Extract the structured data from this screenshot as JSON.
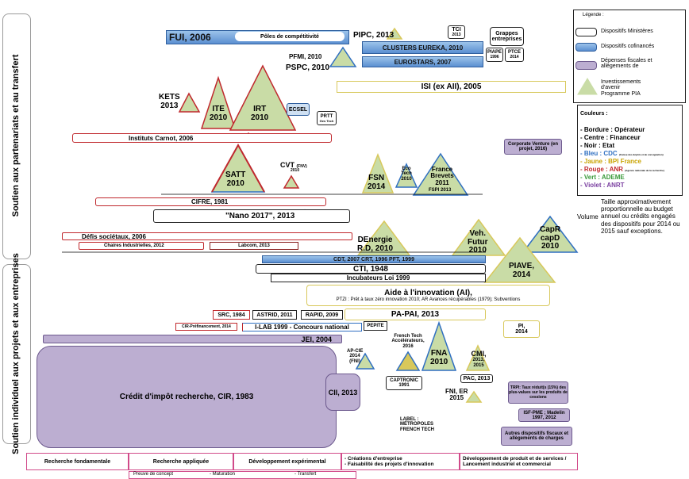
{
  "side_labels": {
    "top": "Soutien aux partenariats et au transfert",
    "bottom": "Soutien individuel aux projets et aux entreprises"
  },
  "items": {
    "fui": "FUI, 2006",
    "poles": "Pôles de compétitivité",
    "pipc": "PIPC, 2013",
    "tci": "TCI",
    "tci_year": "2013",
    "grappes": "Grappes entreprises",
    "clusters": "CLUSTERS EUREKA, 2010",
    "eurostars": "EUROSTARS, 2007",
    "piape": "PIAPE",
    "piape_year": "1996",
    "ptce": "PTCE",
    "ptce_year": "2014",
    "pfmi": "PFMI, 2010",
    "pspc": "PSPC, 2010",
    "isi": "ISI (ex AII), 2005",
    "kets": "KETS",
    "kets_year": "2013",
    "ite": "ITE",
    "ite_year": "2010",
    "irt": "IRT",
    "irt_year": "2010",
    "ecsel": "ECSEL",
    "prtt": "PRTT",
    "prtt_sub": "Ges Tech",
    "carnot": "Instituts Carnot, 2006",
    "corporate": "Corporate Venture (en projet, 2016)",
    "satt": "SATT",
    "satt_year": "2010",
    "cvt": "CVT",
    "cvt_sub": "(FNV)",
    "cvt_year": "2010",
    "fsn": "FSN",
    "fsn_year": "2014",
    "eco": "Eco Tech",
    "eco_year": "2010",
    "france_brevets": "France Brevets 2011",
    "fspi": "FSPI 2013",
    "cifre": "CIFRE, 1981",
    "nano": "\"Nano 2017\", 2013",
    "defis": "Défis sociétaux, 2006",
    "chaires": "Chaires Industrielles, 2012",
    "labcom": "Labcom, 2013",
    "denergie": "DEnergie",
    "denergie_sub": "R.D, 2010",
    "veh": "Veh.",
    "veh_sub": "Futur",
    "veh_year": "2010",
    "capr": "CapR",
    "capd": "capD",
    "capr_year": "2010",
    "cdt": "CDT, 2007 CRT, 1996 PFT, 1999",
    "cti": "CTI, 1948",
    "incubateurs": "Incubateurs Loi 1999",
    "piave": "PIAVE,",
    "piave_year": "2014",
    "ai": "Aide à l'innovation (AI),",
    "ai_sub": "PTZI : Prêt à taux zéro innovation 2010; AR Avances récupérables (1979); Subventions",
    "src": "SRC, 1984",
    "astrid": "ASTRID, 2011",
    "rapid": "RAPID, 2009",
    "papai": "PA-PAI,  2013",
    "cir_pre": "CIR-Préfinancement, 2014",
    "ilab": "I-LAB 1999 - Concours national",
    "pepite": "PEPITE",
    "pi": "PI,",
    "pi_year": "2014",
    "jei": "JEI, 2004",
    "apcie": "AP-CIE",
    "apcie_sub": "2014 (FNI)",
    "frenchtech": "French Tech Accélérateurs, 2016",
    "fna": "FNA",
    "fna_year": "2010",
    "cmi": "CMI,",
    "cmi_year": "2013, 2015",
    "cir": "Crédit d'impôt recherche, CIR, 1983",
    "cii": "CII, 2013",
    "captronic": "CAPTRONIC 1991",
    "pac": "PAC, 2013",
    "fni": "FNI, ER",
    "fni_year": "2015",
    "label": "LABEL : MÉTROPOLES FRENCH TECH",
    "trpi": "TRPI: Taux réduit(s (15%) des plus-values sur les produits de cessions",
    "isfpme": "ISF-PME ; Madelin 1997, 2012",
    "autres": "Autres dispositifs fiscaux et allègements de charges"
  },
  "legend": {
    "title": "Légende :",
    "ministeres": "Dispositifs Ministères",
    "cofinances": "Dispositifs cofinancés",
    "fiscales": "Dépenses fiscales et allègements de",
    "pia": "Investissements d'avenir Programme PIA",
    "couleurs_title": "Couleurs :",
    "bordure": "- Bordure : Opérateur",
    "centre": "- Centre : Financeur",
    "noir": "- Noir : Etat",
    "bleu": "- Bleu : CDC",
    "bleu_note": "(Caisse des dépôts et de consignation)",
    "jaune": "- Jaune : BPI France",
    "rouge": "- Rouge : ANR",
    "rouge_note": "(Agence nationale de la recherche)",
    "vert": "- Vert : ADEME",
    "violet": "- Violet : ANRT",
    "volume_label": "Volume",
    "volume_text": "Taille approximativement proportionnelle au budget annuel ou crédits engagés des dispositifs pour 2014 ou 2015 sauf exceptions."
  },
  "axis": {
    "rf": "Recherche fondamentale",
    "ra": "Recherche appliquée",
    "de": "Développement expérimental",
    "ce": "- Créations d'entreprise\n- Faisabilité des projets d'innovation",
    "dp": "Développement de produit et de services / Lancement industriel et commercial",
    "preuve": "Preuve de concept",
    "maturation": "- Maturation",
    "transfert": "- Transfert"
  },
  "colors": {
    "red": "#c0282d",
    "blue": "#2f6fc1",
    "yellow": "#d8c85b",
    "green": "#c9dca6",
    "purple": "#bcaed1"
  }
}
